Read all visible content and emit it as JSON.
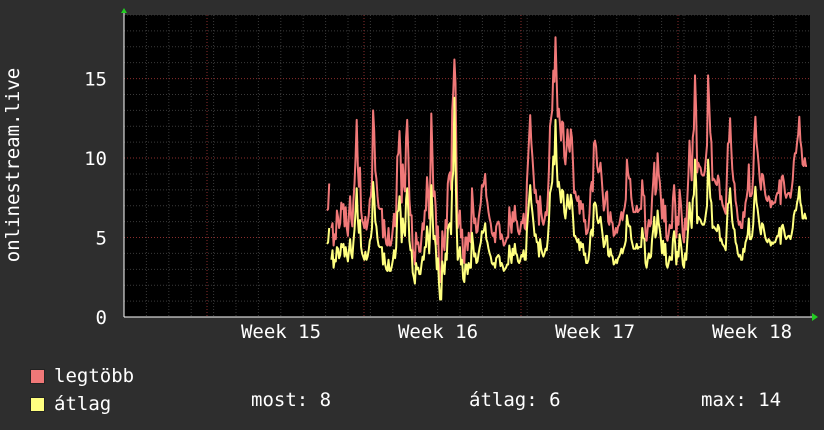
{
  "chart_data": {
    "type": "line",
    "ylabel": "onlinestream.live",
    "ylim": [
      0,
      19
    ],
    "yticks": [
      0,
      5,
      10,
      15
    ],
    "x_tick_labels": [
      "Week 15",
      "Week 16",
      "Week 17",
      "Week 18"
    ],
    "grid": true,
    "series": [
      {
        "name": "legtöbb",
        "color": "#f07878",
        "values": [
          6.7,
          6.8,
          8.4,
          null,
          5.6,
          5.9,
          4.5,
          5.2,
          4.9,
          6.7,
          6.3,
          5.6,
          5.9,
          7.2,
          6.8,
          7.1,
          5.7,
          6.9,
          5.6,
          5.1,
          6.5,
          7.6,
          6.2,
          5.7,
          7.3,
          8.4,
          10.1,
          12.4,
          9.5,
          8.2,
          9.4,
          6.7,
          6.1,
          5.9,
          5.6,
          6.3,
          5.5,
          5.9,
          6.4,
          7.4,
          7.6,
          8.6,
          13.0,
          11.7,
          9.2,
          8.7,
          7.6,
          6.9,
          6.8,
          6.8,
          6.8,
          5.0,
          6.1,
          5.1,
          4.6,
          4.5,
          5.6,
          4.5,
          4.5,
          4.9,
          5.6,
          6.5,
          5.7,
          6.7,
          10.1,
          10.3,
          11.7,
          10.1,
          7.2,
          9.6,
          8.3,
          7.9,
          11.3,
          12.4,
          10.3,
          7.4,
          6.4,
          6.4,
          4.3,
          3.9,
          3.3,
          5.3,
          4.6,
          4.7,
          4.1,
          4.1,
          5.0,
          5.9,
          5.5,
          6.7,
          6.7,
          8.8,
          7.9,
          6.2,
          8.3,
          12.8,
          10.3,
          7.6,
          7.9,
          6.9,
          4.6,
          5.7,
          3.3,
          2.2,
          2.2,
          5.4,
          4.7,
          4.2,
          6.1,
          5.6,
          8.4,
          8.9,
          9.1,
          8.0,
          13.0,
          14.2,
          16.2,
          14.7,
          9.1,
          5.6,
          6.0,
          6.7,
          5.0,
          5.5,
          3.7,
          3.4,
          5.0,
          5.0,
          4.2,
          5.3,
          4.8,
          4.7,
          8.1,
          7.0,
          5.9,
          6.2,
          5.3,
          5.4,
          6.2,
          6.7,
          7.2,
          8.3,
          8.2,
          8.5,
          9.0,
          7.6,
          7.2,
          6.6,
          6.2,
          5.9,
          5.3,
          5.1,
          5.3,
          4.7,
          5.7,
          5.9,
          6.0,
          5.8,
          4.9,
          5.2,
          4.9,
          4.5,
          4.6,
          4.8,
          5.0,
          5.0,
          6.9,
          6.0,
          5.3,
          6.6,
          6.0,
          7.0,
          6.1,
          6.0,
          5.4,
          5.2,
          5.5,
          6.0,
          5.9,
          6.5,
          5.6,
          5.5,
          8.5,
          9.8,
          11.3,
          12.7,
          11.0,
          10.1,
          9.0,
          7.8,
          8.0,
          7.2,
          7.3,
          5.8,
          7.6,
          6.6,
          6.1,
          5.8,
          6.1,
          6.6,
          6.4,
          7.5,
          9.2,
          12.0,
          12.5,
          13.0,
          15.5,
          14.8,
          17.6,
          15.1,
          12.6,
          13.1,
          12.2,
          11.1,
          12.3,
          12.2,
          10.1,
          9.6,
          10.6,
          11.8,
          10.8,
          10.4,
          11.8,
          11.3,
          9.7,
          7.8,
          7.9,
          7.5,
          7.3,
          7.6,
          6.5,
          7.3,
          6.8,
          7.1,
          6.0,
          6.1,
          5.2,
          5.3,
          5.6,
          6.5,
          8.1,
          8.5,
          7.9,
          10.9,
          11.1,
          10.7,
          9.5,
          9.1,
          9.2,
          9.7,
          8.8,
          7.8,
          6.7,
          7.1,
          7.8,
          7.9,
          6.0,
          5.8,
          6.6,
          6.0,
          5.9,
          5.1,
          5.2,
          5.6,
          5.3,
          5.7,
          5.8,
          6.2,
          6.6,
          6.1,
          6.6,
          6.9,
          7.4,
          9.9,
          9.1,
          8.7,
          8.7,
          7.5,
          7.0,
          6.6,
          6.6,
          6.6,
          7.0,
          6.6,
          6.7,
          6.8,
          6.8,
          8.6,
          7.7,
          7.6,
          5.3,
          4.8,
          5.6,
          6.1,
          5.7,
          5.9,
          7.5,
          8.5,
          9.7,
          7.7,
          8.1,
          10.3,
          9.0,
          8.5,
          7.5,
          6.2,
          7.4,
          6.0,
          7.0,
          5.0,
          4.8,
          5.2,
          5.8,
          5.6,
          5.6,
          7.5,
          8.3,
          7.1,
          5.0,
          6.3,
          5.8,
          8.0,
          7.3,
          6.3,
          5.1,
          4.7,
          6.2,
          5.5,
          7.4,
          8.9,
          11.1,
          9.7,
          8.6,
          11.3,
          11.8,
          15.2,
          13.1,
          9.1,
          9.7,
          9.5,
          9.4,
          9.0,
          8.9,
          8.9,
          9.2,
          10.0,
          10.8,
          15.2,
          13.4,
          11.6,
          11.0,
          8.6,
          8.7,
          8.6,
          8.4,
          8.3,
          8.9,
          8.6,
          7.4,
          7.6,
          7.1,
          6.9,
          6.7,
          6.5,
          8.7,
          10.9,
          11.0,
          12.5,
          10.7,
          9.3,
          8.6,
          8.4,
          7.3,
          6.9,
          6.2,
          5.8,
          6.0,
          5.6,
          5.6,
          6.6,
          6.3,
          7.2,
          7.5,
          8.0,
          9.6,
          7.6,
          7.6,
          7.8,
          8.9,
          11.4,
          12.6,
          11.0,
          10.4,
          9.6,
          8.6,
          8.0,
          9.0,
          8.9,
          8.3,
          7.7,
          7.4,
          7.3,
          7.6,
          7.4,
          6.9,
          7.3,
          7.1,
          7.2,
          7.2,
          7.6,
          7.8,
          7.8,
          8.6,
          7.1,
          8.8,
          8.9,
          8.5,
          7.8,
          7.5,
          7.7,
          7.8,
          7.8,
          7.5,
          8.0,
          8.6,
          9.8,
          10.3,
          10.3,
          11.0,
          11.5,
          12.6,
          11.1,
          10.6,
          9.6,
          9.5,
          10.0,
          9.5,
          9.5
        ]
      },
      {
        "name": "átlag",
        "color": "#ffff80",
        "values": [
          4.6,
          4.7,
          5.6,
          null,
          3.6,
          4.2,
          3.1,
          3.6,
          3.5,
          4.4,
          4.3,
          3.7,
          3.9,
          4.6,
          4.4,
          4.6,
          3.8,
          4.4,
          3.9,
          3.5,
          4.2,
          4.9,
          4.0,
          3.7,
          4.7,
          5.5,
          6.7,
          8.1,
          6.2,
          5.3,
          6.1,
          4.4,
          4.0,
          3.8,
          3.6,
          4.1,
          3.6,
          3.8,
          4.2,
          4.8,
          5.0,
          5.6,
          8.5,
          7.6,
          6.0,
          5.7,
          4.9,
          4.5,
          4.4,
          4.4,
          4.4,
          3.3,
          4.0,
          3.3,
          3.0,
          2.9,
          3.6,
          2.9,
          2.9,
          3.2,
          3.6,
          4.2,
          3.7,
          4.4,
          6.6,
          6.7,
          7.6,
          6.6,
          4.7,
          6.2,
          5.4,
          5.1,
          7.4,
          8.1,
          6.7,
          4.8,
          4.2,
          4.2,
          2.8,
          2.5,
          2.1,
          3.4,
          3.0,
          3.1,
          2.7,
          2.7,
          3.3,
          3.8,
          3.6,
          4.4,
          4.4,
          5.7,
          5.1,
          4.0,
          5.4,
          8.3,
          6.7,
          4.9,
          5.1,
          4.5,
          3.0,
          3.7,
          2.1,
          1.1,
          1.1,
          3.5,
          3.1,
          2.7,
          4.0,
          3.6,
          5.5,
          5.8,
          5.9,
          5.2,
          8.5,
          9.2,
          13.8,
          9.6,
          5.9,
          3.6,
          3.9,
          4.4,
          3.3,
          3.6,
          2.4,
          2.2,
          3.3,
          3.3,
          2.7,
          3.4,
          3.1,
          3.1,
          5.3,
          4.6,
          3.8,
          4.0,
          3.4,
          3.5,
          4.0,
          4.4,
          4.7,
          5.4,
          5.3,
          5.5,
          5.9,
          4.9,
          4.7,
          4.3,
          4.0,
          3.8,
          3.4,
          3.3,
          3.4,
          3.1,
          3.7,
          3.8,
          3.9,
          3.8,
          3.2,
          3.4,
          3.2,
          2.9,
          3.0,
          3.1,
          3.3,
          3.3,
          4.5,
          3.9,
          3.4,
          4.3,
          3.9,
          4.6,
          4.0,
          3.9,
          3.5,
          3.4,
          3.6,
          3.9,
          3.8,
          4.2,
          3.6,
          3.6,
          5.5,
          6.4,
          7.4,
          8.3,
          7.2,
          6.6,
          5.9,
          5.1,
          5.2,
          4.7,
          4.7,
          3.8,
          4.9,
          4.3,
          4.0,
          3.8,
          4.0,
          4.3,
          4.2,
          4.9,
          6.0,
          7.8,
          8.1,
          8.5,
          10.1,
          9.6,
          12.4,
          9.8,
          8.2,
          8.5,
          7.9,
          7.2,
          8.0,
          7.9,
          6.6,
          6.2,
          6.9,
          7.7,
          7.0,
          6.8,
          7.7,
          7.3,
          6.3,
          5.1,
          5.1,
          4.9,
          4.7,
          4.9,
          4.2,
          4.7,
          4.4,
          4.6,
          3.9,
          4.0,
          3.4,
          3.4,
          3.6,
          4.2,
          5.3,
          5.5,
          5.1,
          7.1,
          7.2,
          7.0,
          6.2,
          5.9,
          6.0,
          6.3,
          5.7,
          5.1,
          4.4,
          4.6,
          5.1,
          5.1,
          3.9,
          3.8,
          4.3,
          3.9,
          3.8,
          3.3,
          3.4,
          3.6,
          3.4,
          3.7,
          3.8,
          4.0,
          4.3,
          4.0,
          4.3,
          4.5,
          4.8,
          6.4,
          5.9,
          5.7,
          5.7,
          4.9,
          4.6,
          4.3,
          4.3,
          4.3,
          4.6,
          4.3,
          4.4,
          4.4,
          4.4,
          5.6,
          5.0,
          4.9,
          3.4,
          3.1,
          3.6,
          4.0,
          3.7,
          3.8,
          4.9,
          5.5,
          6.3,
          5.0,
          5.3,
          6.7,
          5.9,
          5.5,
          4.9,
          4.0,
          4.8,
          3.9,
          4.6,
          3.3,
          3.1,
          3.4,
          3.8,
          3.6,
          3.6,
          4.9,
          5.4,
          4.6,
          3.3,
          4.1,
          3.8,
          5.2,
          4.7,
          4.1,
          3.3,
          3.1,
          4.0,
          3.6,
          4.8,
          5.8,
          7.2,
          6.3,
          5.6,
          7.4,
          7.7,
          9.9,
          8.5,
          5.9,
          6.3,
          6.2,
          6.1,
          5.9,
          5.8,
          5.8,
          6.0,
          6.5,
          7.0,
          9.9,
          8.7,
          7.5,
          7.2,
          5.6,
          5.7,
          5.6,
          5.5,
          5.4,
          5.8,
          5.6,
          4.8,
          4.9,
          4.6,
          4.5,
          4.4,
          4.2,
          5.7,
          7.1,
          7.2,
          8.1,
          7.0,
          6.0,
          5.6,
          5.5,
          4.7,
          4.5,
          4.0,
          3.8,
          3.9,
          3.6,
          3.6,
          4.3,
          4.1,
          4.7,
          4.9,
          5.2,
          6.2,
          4.9,
          4.9,
          5.1,
          5.8,
          7.4,
          8.2,
          7.2,
          6.8,
          6.2,
          5.6,
          5.2,
          5.9,
          5.8,
          5.4,
          5.0,
          4.8,
          4.7,
          4.9,
          4.8,
          4.5,
          4.7,
          4.6,
          4.7,
          4.7,
          4.9,
          5.1,
          5.1,
          5.6,
          4.6,
          5.7,
          5.8,
          5.5,
          5.1,
          4.9,
          5.0,
          5.1,
          5.1,
          4.9,
          5.2,
          5.6,
          6.4,
          6.7,
          6.7,
          7.2,
          7.5,
          8.2,
          7.2,
          6.9,
          6.2,
          6.2,
          6.5,
          6.2,
          6.2
        ]
      }
    ]
  },
  "legend": {
    "items": [
      {
        "label": "legtöbb",
        "color": "#f07878"
      },
      {
        "label": "átlag",
        "color": "#ffff80"
      }
    ]
  },
  "stats": {
    "now": "most: 8",
    "avg": "átlag: 6",
    "max": "max: 14"
  }
}
